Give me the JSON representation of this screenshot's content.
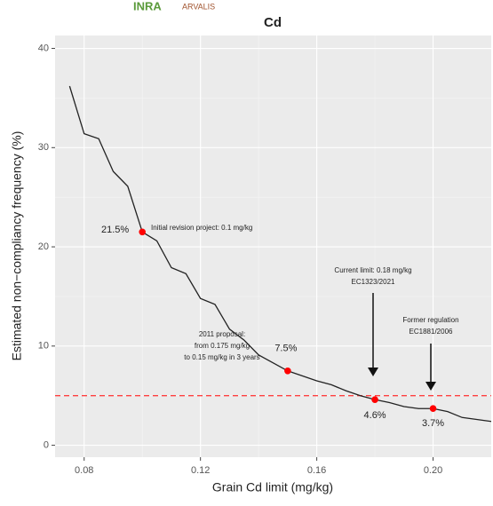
{
  "logos": [
    "INRA",
    "ARVALIS"
  ],
  "chart_data": {
    "type": "line",
    "title": "Cd",
    "x_label": "Grain Cd limit (mg/kg)",
    "y_label": "Estimated non−compliancy frequency (%)",
    "x": [
      0.075,
      0.08,
      0.085,
      0.09,
      0.095,
      0.1,
      0.105,
      0.11,
      0.115,
      0.12,
      0.125,
      0.13,
      0.135,
      0.14,
      0.145,
      0.15,
      0.155,
      0.16,
      0.165,
      0.17,
      0.175,
      0.18,
      0.185,
      0.19,
      0.195,
      0.2,
      0.205,
      0.21,
      0.215,
      0.22
    ],
    "series": [
      {
        "color": "#222222",
        "values": [
          36.2,
          31.4,
          30.9,
          27.6,
          26.1,
          21.5,
          20.6,
          17.9,
          17.3,
          14.8,
          14.2,
          11.7,
          10.6,
          9.1,
          8.3,
          7.5,
          7.0,
          6.5,
          6.1,
          5.5,
          5.0,
          4.6,
          4.3,
          3.9,
          3.7,
          3.7,
          3.4,
          2.8,
          2.6,
          2.4
        ]
      }
    ],
    "markers": {
      "color": "#ff0000",
      "x": [
        0.1,
        0.15,
        0.18,
        0.2
      ],
      "values": [
        21.5,
        7.5,
        4.6,
        3.7
      ],
      "value_labels": [
        "21.5%",
        "7.5%",
        "4.6%",
        "3.7%"
      ]
    },
    "reference_line": {
      "value": 5,
      "color": "#ff4040",
      "dashed": true
    },
    "annotations": [
      {
        "lines": [
          "Initial revision project: 0.1 mg/kg"
        ]
      },
      {
        "lines": [
          "2011 proposal:",
          "from 0.175 mg/kg",
          "to 0.15 mg/kg in 3 years"
        ]
      },
      {
        "lines": [
          "Current limit: 0.18 mg/kg",
          "EC1323/2021"
        ]
      },
      {
        "lines": [
          "Former regulation",
          "EC1881/2006"
        ]
      }
    ],
    "xlim": [
      0.07,
      0.22
    ],
    "ylim": [
      -1.2,
      41.3
    ],
    "xticks": [
      0.08,
      0.12,
      0.16,
      {
        "value": 0.2,
        "label": "0.20"
      }
    ],
    "yticks": [
      0,
      10,
      20,
      30,
      40
    ],
    "grid": true
  }
}
